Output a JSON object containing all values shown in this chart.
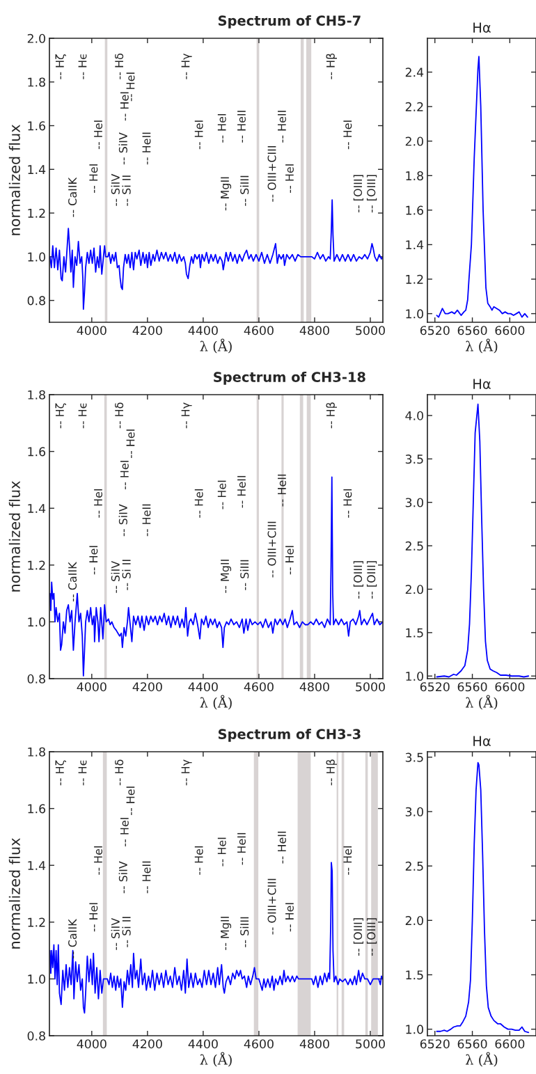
{
  "chart_data": [
    {
      "type": "line",
      "title": "Spectrum of CH5-7",
      "xlabel": "λ (Å)",
      "ylabel": "normalized flux",
      "xlim": [
        3848,
        5045
      ],
      "ylim": [
        0.7,
        2.0
      ],
      "xticks": [
        4000,
        4200,
        4400,
        4600,
        4800,
        5000
      ],
      "yticks": [
        0.8,
        {
          "value": 1,
          "label": "1.0"
        },
        1.2,
        1.4,
        1.6,
        1.8,
        {
          "value": 2,
          "label": "2.0"
        }
      ],
      "grid": false,
      "x": [
        3850,
        3855,
        3860,
        3866,
        3872,
        3878,
        3884,
        3890,
        3894,
        3900,
        3906,
        3912,
        3916,
        3920,
        3925,
        3930,
        3934,
        3940,
        3946,
        3952,
        3958,
        3964,
        3968,
        3970,
        3974,
        3978,
        3984,
        3990,
        3996,
        4002,
        4008,
        4014,
        4020,
        4026,
        4030,
        4036,
        4042,
        4046,
        4050,
        4058,
        4062,
        4068,
        4074,
        4080,
        4086,
        4092,
        4098,
        4102,
        4106,
        4110,
        4114,
        4120,
        4126,
        4132,
        4138,
        4144,
        4150,
        4156,
        4162,
        4170,
        4176,
        4184,
        4190,
        4196,
        4200,
        4206,
        4212,
        4220,
        4226,
        4234,
        4242,
        4250,
        4258,
        4266,
        4274,
        4282,
        4290,
        4298,
        4306,
        4314,
        4322,
        4330,
        4336,
        4340,
        4346,
        4352,
        4358,
        4364,
        4370,
        4378,
        4386,
        4390,
        4396,
        4404,
        4412,
        4420,
        4428,
        4436,
        4444,
        4452,
        4460,
        4468,
        4472,
        4476,
        4482,
        4490,
        4498,
        4506,
        4514,
        4522,
        4530,
        4540,
        4548,
        4556,
        4564,
        4572,
        4580,
        4590,
        4600,
        4610,
        4620,
        4630,
        4640,
        4650,
        4660,
        4666,
        4672,
        4680,
        4688,
        4692,
        4700,
        4710,
        4720,
        4730,
        4740,
        4750,
        4790,
        4800,
        4810,
        4820,
        4830,
        4840,
        4850,
        4856,
        4860,
        4863,
        4866,
        4870,
        4880,
        4890,
        4900,
        4910,
        4920,
        4930,
        4940,
        4950,
        4960,
        4970,
        4980,
        4990,
        5000,
        5006,
        5010,
        5016,
        5024,
        5032,
        5040,
        5045
      ],
      "series": [
        {
          "color": "#0000ff",
          "values": [
            1.0,
            0.95,
            1.05,
            0.95,
            1.04,
            0.94,
            1.03,
            0.9,
            0.89,
            1.0,
            0.93,
            1.05,
            1.13,
            1.05,
            0.93,
            1.03,
            0.86,
            1.0,
            0.96,
            1.07,
            0.97,
            1.0,
            0.9,
            0.76,
            0.84,
            0.95,
            1.02,
            0.97,
            1.03,
            0.97,
            1.04,
            0.93,
            1.0,
            0.95,
            1.05,
            0.92,
            1.0,
            1.05,
            1.0,
            1.0,
            1.02,
            0.97,
            1.01,
            0.98,
            1.02,
            0.95,
            0.96,
            0.9,
            0.86,
            0.85,
            0.95,
            1.01,
            0.97,
            1.01,
            0.95,
            1.02,
            0.94,
            1.02,
            0.99,
            1.03,
            0.96,
            1.02,
            0.97,
            1.01,
            0.95,
            1.02,
            0.96,
            1.01,
            0.98,
            1.03,
            0.98,
            1.02,
            0.99,
            1.02,
            0.98,
            1.01,
            0.98,
            1.02,
            0.97,
            1.01,
            0.98,
            1.0,
            0.97,
            0.92,
            0.9,
            0.96,
            1.0,
            0.97,
            1.01,
            0.99,
            1.01,
            0.95,
            1.01,
            0.98,
            1.02,
            0.97,
            1.01,
            0.98,
            1.01,
            0.97,
            1.0,
            0.98,
            0.94,
            0.97,
            1.02,
            0.98,
            1.02,
            0.98,
            1.01,
            0.97,
            1.01,
            0.98,
            1.01,
            1.03,
            0.99,
            1.01,
            0.98,
            1.01,
            0.98,
            1.02,
            0.97,
            1.01,
            0.97,
            1.01,
            1.06,
            0.97,
            1.01,
            0.99,
            1.01,
            0.96,
            1.01,
            0.99,
            1.01,
            0.98,
            1.01,
            1.0,
            1.0,
            0.99,
            1.02,
            0.99,
            1.01,
            0.98,
            1.0,
            0.99,
            1.12,
            1.26,
            1.1,
            0.98,
            1.01,
            0.98,
            1.01,
            0.98,
            1.01,
            0.98,
            1.01,
            0.98,
            1.0,
            0.99,
            1.01,
            0.99,
            1.02,
            1.06,
            1.04,
            1.0,
            0.98,
            1.01,
            0.99,
            1.0
          ]
        }
      ],
      "bands": [
        {
          "axis": "x",
          "from": 4047,
          "to": 4056,
          "color": "#d8d3d3"
        },
        {
          "axis": "x",
          "from": 4592,
          "to": 4601,
          "color": "#d8d3d3"
        },
        {
          "axis": "x",
          "from": 4750,
          "to": 4761,
          "color": "#d8d3d3"
        },
        {
          "axis": "x",
          "from": 4770,
          "to": 4788,
          "color": "#d8d3d3"
        }
      ],
      "annotations": [
        "-- Hζ",
        "-- Hϵ",
        "-- Hδ",
        "-- Hγ",
        "-- Hβ",
        "-- HeI",
        "-- HeI",
        "-- HeI",
        "-- HeI",
        "-- SiIV",
        "-- SiIV",
        "-- Si II",
        "-- CaIIK",
        "-- HeII",
        "-- HeI",
        "-- HeI",
        "-- MgII",
        "-- HeII",
        "-- SiIII",
        "-- OIII+CIII",
        "-- HeII",
        "-- HeI",
        "-- HeI",
        "-- [OIII]",
        "-- [OIII]"
      ]
    },
    {
      "type": "line",
      "title": "Hα",
      "xlabel": "λ (Å)",
      "xlim": [
        6512,
        6628
      ],
      "ylim": [
        0.95,
        2.596
      ],
      "xticks": [
        6520,
        6560,
        6600
      ],
      "yticks": [
        {
          "value": 1,
          "label": "1.0"
        },
        1.2,
        1.4,
        1.6,
        1.8,
        {
          "value": 2,
          "label": "2.0"
        },
        2.2,
        2.4
      ],
      "grid": false,
      "x": [
        6522,
        6524,
        6528,
        6531,
        6534,
        6538,
        6541,
        6544,
        6548,
        6551,
        6553,
        6555,
        6556.4,
        6559,
        6562,
        6566,
        6567,
        6569,
        6571.5,
        6574.5,
        6576.5,
        6579,
        6581,
        6583,
        6586,
        6589,
        6592,
        6595,
        6598,
        6601,
        6604,
        6607,
        6610,
        6613,
        6616,
        6619
      ],
      "series": [
        {
          "color": "#0000ff",
          "values": [
            0.99,
            0.98,
            1.03,
            1.0,
            1.0,
            1.01,
            1.0,
            1.02,
            0.99,
            1.01,
            1.02,
            1.08,
            1.2,
            1.4,
            1.9,
            2.42,
            2.49,
            2.2,
            1.6,
            1.15,
            1.06,
            1.04,
            1.02,
            1.04,
            1.03,
            1.02,
            1.0,
            1.01,
            1.0,
            1.0,
            0.99,
            1.0,
            1.01,
            0.98,
            1.0,
            0.98
          ]
        }
      ]
    },
    {
      "type": "line",
      "title": "Spectrum of CH3-18",
      "xlabel": "λ (Å)",
      "ylabel": "normalized flux",
      "xlim": [
        3848,
        5045
      ],
      "ylim": [
        0.8,
        1.8
      ],
      "xticks": [
        4000,
        4200,
        4400,
        4600,
        4800,
        5000
      ],
      "yticks": [
        0.8,
        {
          "value": 1,
          "label": "1.0"
        },
        1.2,
        1.4,
        1.6,
        1.8
      ],
      "grid": false,
      "x": [
        3850,
        3853,
        3856,
        3860,
        3864,
        3868,
        3872,
        3878,
        3884,
        3888,
        3892,
        3898,
        3904,
        3910,
        3916,
        3922,
        3928,
        3934,
        3940,
        3948,
        3954,
        3960,
        3966,
        3970,
        3974,
        3978,
        3984,
        3990,
        3996,
        4002,
        4008,
        4010,
        4016,
        4022,
        4026,
        4032,
        4040,
        4046,
        4052,
        4060,
        4066,
        4072,
        4080,
        4088,
        4094,
        4100,
        4106,
        4110,
        4116,
        4122,
        4128,
        4132,
        4138,
        4144,
        4150,
        4158,
        4166,
        4174,
        4180,
        4188,
        4196,
        4204,
        4212,
        4220,
        4228,
        4236,
        4244,
        4252,
        4260,
        4268,
        4276,
        4284,
        4292,
        4300,
        4308,
        4316,
        4324,
        4332,
        4338,
        4344,
        4350,
        4356,
        4364,
        4372,
        4380,
        4388,
        4394,
        4402,
        4410,
        4418,
        4426,
        4434,
        4442,
        4450,
        4458,
        4466,
        4471,
        4476,
        4484,
        4492,
        4500,
        4510,
        4520,
        4530,
        4540,
        4546,
        4554,
        4560,
        4568,
        4576,
        4586,
        4596,
        4606,
        4614,
        4624,
        4634,
        4644,
        4650,
        4658,
        4666,
        4676,
        4686,
        4694,
        4702,
        4712,
        4720,
        4726,
        4736,
        4746,
        4756,
        4766,
        4776,
        4786,
        4796,
        4806,
        4816,
        4826,
        4836,
        4846,
        4856,
        4859,
        4862,
        4865,
        4868,
        4876,
        4886,
        4896,
        4906,
        4916,
        4922,
        4928,
        4938,
        4948,
        4958,
        4962,
        4968,
        4978,
        4988,
        4998,
        5008,
        5014,
        5024,
        5034,
        5045
      ],
      "series": [
        {
          "color": "#0000ff",
          "values": [
            1.1,
            1.04,
            1.14,
            1.08,
            1.1,
            1.0,
            1.05,
            1.0,
            1.03,
            0.9,
            0.92,
            1.0,
            0.96,
            1.04,
            1.06,
            1.0,
            1.04,
            0.9,
            1.0,
            1.1,
            1.0,
            1.03,
            0.95,
            0.81,
            0.9,
            1.0,
            1.04,
            1.0,
            1.05,
            0.99,
            1.02,
            0.93,
            1.05,
            1.0,
            0.93,
            1.05,
            0.94,
            1.06,
            1.0,
            1.01,
            0.99,
            1.0,
            0.98,
            0.97,
            0.96,
            0.95,
            0.96,
            0.91,
            0.98,
            0.95,
            1.0,
            1.05,
            0.99,
            0.93,
            1.02,
            0.99,
            1.02,
            0.98,
            1.02,
            0.97,
            1.02,
            0.99,
            1.02,
            1.0,
            1.02,
            0.99,
            1.02,
            1.0,
            1.03,
            0.99,
            1.02,
            0.98,
            1.02,
            0.99,
            1.02,
            0.98,
            1.01,
            0.98,
            1.05,
            0.95,
            1.0,
            1.01,
            0.99,
            1.03,
            0.99,
            0.94,
            1.01,
            0.99,
            1.02,
            0.98,
            1.01,
            0.99,
            1.01,
            0.98,
            1.0,
            0.98,
            0.91,
            0.98,
            1.0,
            0.99,
            1.01,
            0.99,
            1.0,
            0.98,
            1.01,
            0.96,
            1.01,
            0.97,
            1.01,
            0.99,
            1.0,
            0.99,
            1.0,
            0.98,
            1.01,
            0.98,
            1.0,
            0.96,
            1.01,
            0.99,
            1.01,
            0.99,
            1.01,
            0.98,
            1.01,
            1.04,
            0.99,
            1.0,
            0.98,
            1.0,
            0.99,
            0.99,
            1.0,
            0.99,
            1.01,
            0.99,
            1.0,
            0.98,
            1.01,
            0.99,
            1.2,
            1.51,
            1.1,
            0.99,
            1.01,
            0.99,
            1.01,
            0.99,
            1.0,
            0.95,
            1.0,
            1.01,
            0.99,
            1.02,
            1.04,
            0.99,
            1.01,
            0.99,
            1.01,
            1.03,
            0.99,
            1.01,
            0.99,
            1.0
          ]
        }
      ],
      "bands": [
        {
          "axis": "x",
          "from": 4045,
          "to": 4054,
          "color": "#d8d3d3"
        },
        {
          "axis": "x",
          "from": 4592,
          "to": 4600,
          "color": "#d8d3d3"
        },
        {
          "axis": "x",
          "from": 4681,
          "to": 4689,
          "color": "#d8d3d3"
        },
        {
          "axis": "x",
          "from": 4747,
          "to": 4759,
          "color": "#d8d3d3"
        },
        {
          "axis": "x",
          "from": 4772,
          "to": 4786,
          "color": "#d8d3d3"
        }
      ],
      "annotations": [
        "-- Hζ",
        "-- Hϵ",
        "-- Hδ",
        "-- Hγ",
        "-- Hβ",
        "-- HeI",
        "-- HeI",
        "-- HeI",
        "-- HeI",
        "-- SiIV",
        "-- SiIV",
        "-- Si II",
        "-- CaIIK",
        "-- HeII",
        "-- HeI",
        "-- HeI",
        "-- MgII",
        "-- HeII",
        "-- SiIII",
        "-- OIII+CIII",
        "-- HeII",
        "-- HeI",
        "-- HeI",
        "-- [OIII]",
        "-- [OIII]"
      ]
    },
    {
      "type": "line",
      "title": "Hα",
      "xlabel": "λ (Å)",
      "xlim": [
        6512,
        6628
      ],
      "ylim": [
        0.97,
        4.24
      ],
      "xticks": [
        6520,
        6560,
        6600
      ],
      "yticks": [
        {
          "value": 1,
          "label": "1.0"
        },
        1.5,
        {
          "value": 2,
          "label": "2.0"
        },
        2.5,
        {
          "value": 3,
          "label": "3.0"
        },
        3.5,
        {
          "value": 4,
          "label": "4.0"
        }
      ],
      "grid": false,
      "x": [
        6522,
        6530,
        6535,
        6540,
        6543,
        6548,
        6552,
        6555,
        6557,
        6559,
        6561,
        6563,
        6566,
        6568,
        6570,
        6572,
        6574,
        6576,
        6579,
        6582,
        6586,
        6590,
        6596,
        6602,
        6610,
        6615,
        6620
      ],
      "series": [
        {
          "color": "#0000ff",
          "values": [
            0.99,
            1.0,
            0.99,
            1.02,
            1.01,
            1.06,
            1.12,
            1.3,
            1.6,
            2.2,
            3.0,
            3.8,
            4.13,
            3.7,
            2.8,
            2.0,
            1.4,
            1.18,
            1.08,
            1.06,
            1.04,
            1.01,
            1.01,
            1.0,
            1.0,
            0.99,
            1.0
          ]
        }
      ]
    },
    {
      "type": "line",
      "title": "Spectrum of CH3-3",
      "xlabel": "λ (Å)",
      "ylabel": "normalized flux",
      "xlim": [
        3848,
        5045
      ],
      "ylim": [
        0.8,
        1.8
      ],
      "xticks": [
        4000,
        4200,
        4400,
        4600,
        4800,
        5000
      ],
      "yticks": [
        0.8,
        {
          "value": 1,
          "label": "1.0"
        },
        1.2,
        1.4,
        1.6,
        1.8
      ],
      "grid": false,
      "x": [
        3850,
        3853,
        3856,
        3860,
        3864,
        3868,
        3872,
        3876,
        3880,
        3884,
        3890,
        3896,
        3902,
        3908,
        3914,
        3920,
        3926,
        3932,
        3936,
        3942,
        3948,
        3954,
        3960,
        3966,
        3970,
        3974,
        3978,
        3984,
        3990,
        3996,
        4002,
        4006,
        4012,
        4018,
        4024,
        4030,
        4036,
        4042,
        4056,
        4062,
        4068,
        4074,
        4080,
        4086,
        4092,
        4098,
        4104,
        4110,
        4116,
        4122,
        4128,
        4134,
        4140,
        4146,
        4150,
        4156,
        4162,
        4168,
        4176,
        4182,
        4190,
        4196,
        4204,
        4210,
        4218,
        4226,
        4234,
        4242,
        4250,
        4258,
        4266,
        4274,
        4282,
        4290,
        4298,
        4306,
        4314,
        4322,
        4330,
        4336,
        4342,
        4348,
        4356,
        4364,
        4372,
        4380,
        4388,
        4396,
        4404,
        4412,
        4420,
        4428,
        4436,
        4444,
        4452,
        4458,
        4466,
        4472,
        4476,
        4482,
        4490,
        4498,
        4506,
        4514,
        4520,
        4528,
        4534,
        4540,
        4548,
        4556,
        4562,
        4570,
        4578,
        4584,
        4590,
        4600,
        4606,
        4612,
        4618,
        4624,
        4632,
        4640,
        4648,
        4654,
        4660,
        4668,
        4676,
        4684,
        4690,
        4696,
        4704,
        4712,
        4720,
        4728,
        4736,
        4742,
        4790,
        4796,
        4804,
        4812,
        4820,
        4828,
        4836,
        4844,
        4850,
        4854,
        4858,
        4860,
        4863,
        4866,
        4870,
        4876,
        4884,
        4890,
        4900,
        4910,
        4920,
        4928,
        4936,
        4944,
        4950,
        4958,
        4964,
        4972,
        4980,
        4990,
        5000,
        5010,
        5020,
        5030,
        5036,
        5040,
        5045
      ],
      "series": [
        {
          "color": "#0000ff",
          "values": [
            1.1,
            1.02,
            1.1,
            1.04,
            1.12,
            1.0,
            1.1,
            0.98,
            1.12,
            0.95,
            0.91,
            1.03,
            0.96,
            1.05,
            0.97,
            1.04,
            0.98,
            1.1,
            0.93,
            1.06,
            0.99,
            1.05,
            0.96,
            1.0,
            0.9,
            0.88,
            0.95,
            1.08,
            0.99,
            1.07,
            0.98,
            1.09,
            0.95,
            1.04,
            0.93,
            1.03,
            0.95,
            1.0,
            1.0,
            0.98,
            1.02,
            0.97,
            1.01,
            0.96,
            1.01,
            0.97,
            1.0,
            0.9,
            0.99,
            0.96,
            1.03,
            0.98,
            1.05,
            0.97,
            1.09,
            1.0,
            1.03,
            0.97,
            1.07,
            0.98,
            1.02,
            0.96,
            1.01,
            0.97,
            1.03,
            0.96,
            1.02,
            0.98,
            1.02,
            0.97,
            1.03,
            0.98,
            1.01,
            0.97,
            1.04,
            0.98,
            1.01,
            0.96,
            1.03,
            0.95,
            1.07,
            0.97,
            1.02,
            0.97,
            1.02,
            0.98,
            1.0,
            0.97,
            1.03,
            0.98,
            1.03,
            0.98,
            1.02,
            0.97,
            1.04,
            0.98,
            1.05,
            0.97,
            0.95,
            0.99,
            1.01,
            0.98,
            1.02,
            1.0,
            1.03,
            1.01,
            1.03,
            1.0,
            1.01,
            0.97,
            1.01,
            0.98,
            1.01,
            1.04,
            1.0,
            1.0,
            0.98,
            0.96,
            1.0,
            0.97,
            1.0,
            0.97,
            1.01,
            0.96,
            1.0,
            0.98,
            1.01,
            0.98,
            1.03,
            0.99,
            1.01,
            0.99,
            1.01,
            0.99,
            1.01,
            1.0,
            1.0,
            0.98,
            1.01,
            0.97,
            1.01,
            0.98,
            1.02,
            0.99,
            1.02,
            1.0,
            1.2,
            1.41,
            1.38,
            1.1,
            0.99,
            1.01,
            0.98,
            1.0,
            0.99,
            1.0,
            0.98,
            1.0,
            0.98,
            1.01,
            0.98,
            1.03,
            0.99,
            1.02,
            1.0,
            1.0,
            0.98,
            1.0,
            1.0,
            1.0,
            0.98,
            1.01,
            1.0
          ]
        }
      ],
      "bands": [
        {
          "axis": "x",
          "from": 4040,
          "to": 4054,
          "color": "#d8d3d3"
        },
        {
          "axis": "x",
          "from": 4582,
          "to": 4598,
          "color": "#d8d3d3"
        },
        {
          "axis": "x",
          "from": 4739,
          "to": 4786,
          "color": "#d8d3d3"
        },
        {
          "axis": "x",
          "from": 4879,
          "to": 4885,
          "color": "#d8d3d3"
        },
        {
          "axis": "x",
          "from": 4897,
          "to": 4906,
          "color": "#d8d3d3"
        },
        {
          "axis": "x",
          "from": 4982,
          "to": 4991,
          "color": "#d8d3d3"
        },
        {
          "axis": "x",
          "from": 5003,
          "to": 5027,
          "color": "#d8d3d3"
        }
      ],
      "annotations": [
        "-- Hζ",
        "-- Hϵ",
        "-- Hδ",
        "-- Hγ",
        "-- Hβ",
        "-- HeI",
        "-- HeI",
        "-- HeI",
        "-- HeI",
        "-- SiIV",
        "-- SiIV",
        "-- Si II",
        "-- CaIIK",
        "-- HeII",
        "-- HeI",
        "-- HeI",
        "-- MgII",
        "-- HeII",
        "-- SiIII",
        "-- OIII+CIII",
        "-- HeII",
        "-- HeI",
        "-- HeI",
        "-- [OIII]",
        "-- [OIII]"
      ]
    },
    {
      "type": "line",
      "title": "Hα",
      "xlabel": "λ (Å)",
      "xlim": [
        6512,
        6628
      ],
      "ylim": [
        0.94,
        3.55
      ],
      "xticks": [
        6520,
        6560,
        6600
      ],
      "yticks": [
        {
          "value": 1,
          "label": "1.0"
        },
        1.5,
        {
          "value": 2,
          "label": "2.0"
        },
        2.5,
        {
          "value": 3,
          "label": "3.0"
        },
        3.5
      ],
      "grid": false,
      "x": [
        6522,
        6526,
        6530,
        6533,
        6537,
        6540,
        6544,
        6547,
        6550,
        6553,
        6556,
        6558,
        6560,
        6562,
        6564,
        6566,
        6567,
        6569,
        6571,
        6573,
        6575,
        6577,
        6580,
        6583,
        6587,
        6590,
        6594,
        6598,
        6602,
        6606,
        6610,
        6613,
        6616,
        6620
      ],
      "series": [
        {
          "color": "#0000ff",
          "values": [
            0.98,
            0.98,
            0.99,
            0.98,
            1.0,
            1.02,
            1.03,
            1.03,
            1.07,
            1.12,
            1.25,
            1.45,
            2.0,
            2.7,
            3.2,
            3.45,
            3.43,
            3.2,
            2.6,
            1.9,
            1.4,
            1.2,
            1.12,
            1.08,
            1.05,
            1.05,
            1.02,
            1.0,
            1.0,
            0.99,
            0.99,
            1.02,
            0.98,
            0.97
          ]
        }
      ]
    }
  ]
}
